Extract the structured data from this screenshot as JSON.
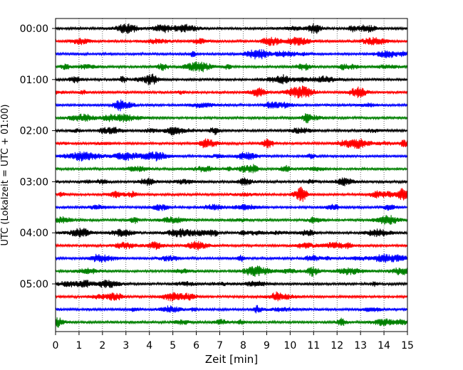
{
  "chart_data": {
    "type": "line",
    "title": "",
    "xlabel": "Zeit  [min]",
    "ylabel": "UTC (Lokalzeit = UTC + 01:00)",
    "xlim": [
      0,
      15
    ],
    "x_ticks": [
      "0",
      "1",
      "2",
      "3",
      "4",
      "5",
      "6",
      "7",
      "8",
      "9",
      "10",
      "11",
      "12",
      "13",
      "14",
      "15"
    ],
    "y_tick_labels": [
      "00:00",
      "01:00",
      "02:00",
      "03:00",
      "04:00",
      "05:00"
    ],
    "trace_minutes_per_line": 15,
    "trace_start": "00:00",
    "trace_end": "05:45",
    "trace_colors": [
      "#000000",
      "#ff0000",
      "#0000ff",
      "#008000"
    ],
    "grid_x": true,
    "grid_style": "dotted"
  }
}
